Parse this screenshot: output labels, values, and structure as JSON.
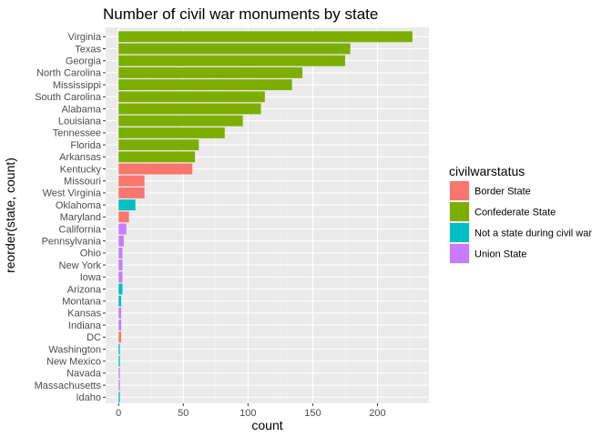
{
  "chart_data": {
    "type": "bar",
    "orientation": "horizontal",
    "title": "Number of civil war monuments by state",
    "xlabel": "count",
    "ylabel": "reorder(state, count)",
    "xlim": [
      0,
      235
    ],
    "xticks": [
      0,
      50,
      100,
      150,
      200
    ],
    "grid": true,
    "legend": {
      "title": "civilwarstatus",
      "position": "right",
      "entries": [
        {
          "label": "Border State",
          "color": "#F8766D"
        },
        {
          "label": "Confederate State",
          "color": "#7CAE00"
        },
        {
          "label": "Not a state during civil war",
          "color": "#00BFC4"
        },
        {
          "label": "Union State",
          "color": "#C77CFF"
        }
      ]
    },
    "bars": [
      {
        "state": "Virginia",
        "count": 227,
        "status": 1
      },
      {
        "state": "Texas",
        "count": 179,
        "status": 1
      },
      {
        "state": "Georgia",
        "count": 175,
        "status": 1
      },
      {
        "state": "North Carolina",
        "count": 142,
        "status": 1
      },
      {
        "state": "Mississippi",
        "count": 134,
        "status": 1
      },
      {
        "state": "South Carolina",
        "count": 113,
        "status": 1
      },
      {
        "state": "Alabama",
        "count": 110,
        "status": 1
      },
      {
        "state": "Louisiana",
        "count": 96,
        "status": 1
      },
      {
        "state": "Tennessee",
        "count": 82,
        "status": 1
      },
      {
        "state": "Florida",
        "count": 62,
        "status": 1
      },
      {
        "state": "Arkansas",
        "count": 59,
        "status": 1
      },
      {
        "state": "Kentucky",
        "count": 57,
        "status": 0
      },
      {
        "state": "Missouri",
        "count": 20,
        "status": 0
      },
      {
        "state": "West Virginia",
        "count": 20,
        "status": 0
      },
      {
        "state": "Oklahoma",
        "count": 13,
        "status": 2
      },
      {
        "state": "Maryland",
        "count": 8,
        "status": 0
      },
      {
        "state": "California",
        "count": 6,
        "status": 3
      },
      {
        "state": "Pennsylvania",
        "count": 4,
        "status": 3
      },
      {
        "state": "Ohio",
        "count": 3,
        "status": 3
      },
      {
        "state": "New York",
        "count": 3,
        "status": 3
      },
      {
        "state": "Iowa",
        "count": 3,
        "status": 3
      },
      {
        "state": "Arizona",
        "count": 3,
        "status": 2
      },
      {
        "state": "Montana",
        "count": 2,
        "status": 2
      },
      {
        "state": "Kansas",
        "count": 2,
        "status": 3
      },
      {
        "state": "Indiana",
        "count": 2,
        "status": 3
      },
      {
        "state": "DC",
        "count": 2,
        "status": 0
      },
      {
        "state": "Washington",
        "count": 1,
        "status": 2
      },
      {
        "state": "New Mexico",
        "count": 1,
        "status": 2
      },
      {
        "state": "Navada",
        "count": 1,
        "status": 3
      },
      {
        "state": "Massachusetts",
        "count": 1,
        "status": 3
      },
      {
        "state": "Idaho",
        "count": 1,
        "status": 2
      }
    ]
  }
}
